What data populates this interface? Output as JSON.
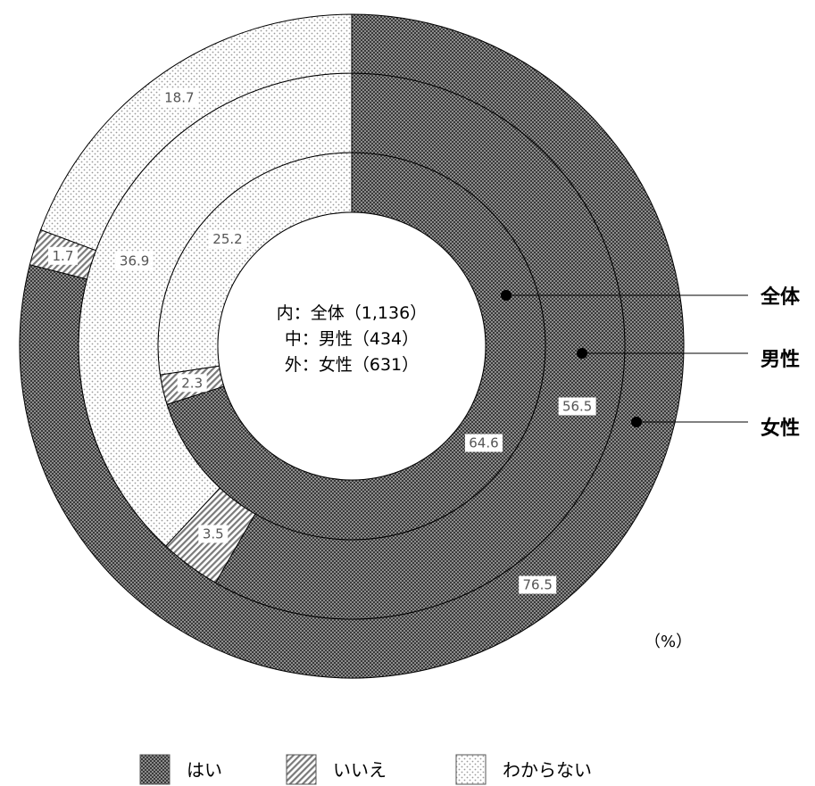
{
  "chart_data": {
    "type": "pie",
    "subtype": "multi-level donut",
    "categories": [
      "はい",
      "いいえ",
      "わからない"
    ],
    "series": [
      {
        "name": "全体",
        "ring": "inner",
        "center_label": "内：全体（1,136）",
        "values": [
          64.6,
          2.3,
          25.2
        ]
      },
      {
        "name": "男性",
        "ring": "middle",
        "center_label": "中：男性（434）",
        "values": [
          56.5,
          3.5,
          36.9
        ]
      },
      {
        "name": "女性",
        "ring": "outer",
        "center_label": "外：女性（631）",
        "values": [
          76.5,
          1.7,
          18.7
        ]
      }
    ],
    "unit": "（%）",
    "legend": {
      "position": "bottom",
      "items": [
        {
          "label": "はい",
          "pattern": "checker"
        },
        {
          "label": "いいえ",
          "pattern": "diagonal"
        },
        {
          "label": "わからない",
          "pattern": "dots"
        }
      ]
    },
    "colors": {
      "hai": "#7a7a7a",
      "iie": "#e6e6e6",
      "wakaranai": "#f7f7f7",
      "stroke": "#000000"
    }
  }
}
